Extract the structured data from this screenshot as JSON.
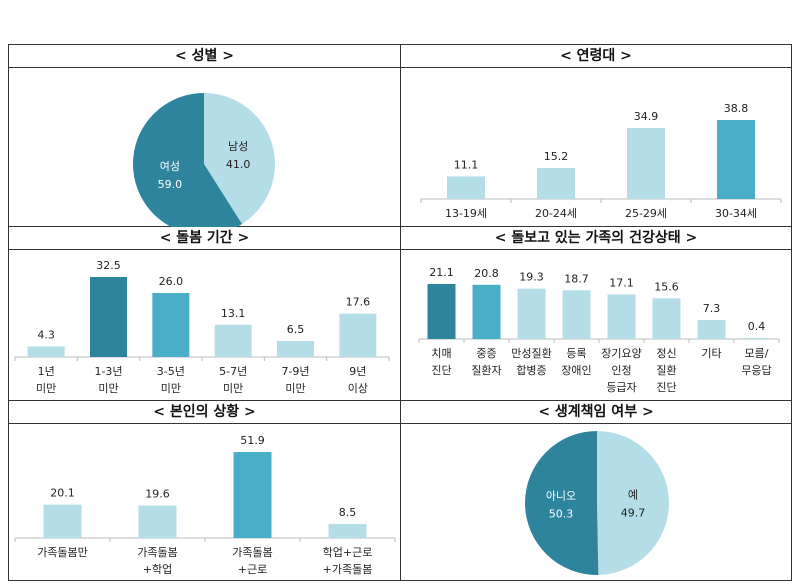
{
  "colors": {
    "dark": "#2e849d",
    "mid": "#4aaec8",
    "light": "#b5dde8"
  },
  "chart_data": [
    {
      "id": "gender",
      "type": "pie",
      "title": "< 성별 >",
      "slices": [
        {
          "label": "남성",
          "value": 41.0,
          "color": "light"
        },
        {
          "label": "여성",
          "value": 59.0,
          "color": "dark"
        }
      ]
    },
    {
      "id": "age",
      "type": "bar",
      "title": "< 연령대 >",
      "categories": [
        [
          "13-19세"
        ],
        [
          "20-24세"
        ],
        [
          "25-29세"
        ],
        [
          "30-34세"
        ]
      ],
      "values": [
        11.1,
        15.2,
        34.9,
        38.8
      ],
      "colors": [
        "light",
        "light",
        "light",
        "mid"
      ]
    },
    {
      "id": "period",
      "type": "bar",
      "title": "< 돌봄 기간 >",
      "categories": [
        [
          "1년",
          "미만"
        ],
        [
          "1-3년",
          "미만"
        ],
        [
          "3-5년",
          "미만"
        ],
        [
          "5-7년",
          "미만"
        ],
        [
          "7-9년",
          "미만"
        ],
        [
          "9년",
          "이상"
        ]
      ],
      "values": [
        4.3,
        32.5,
        26.0,
        13.1,
        6.5,
        17.6
      ],
      "colors": [
        "light",
        "dark",
        "mid",
        "light",
        "light",
        "light"
      ]
    },
    {
      "id": "health",
      "type": "bar",
      "title": "< 돌보고 있는 가족의 건강상태 >",
      "categories": [
        [
          "치매",
          "진단"
        ],
        [
          "중증",
          "질환자"
        ],
        [
          "만성질환",
          "합병증"
        ],
        [
          "등록",
          "장애인"
        ],
        [
          "장기요양",
          "인정",
          "등급자"
        ],
        [
          "정신",
          "질환",
          "진단"
        ],
        [
          "기타"
        ],
        [
          "모름/",
          "무응답"
        ]
      ],
      "values": [
        21.1,
        20.8,
        19.3,
        18.7,
        17.1,
        15.6,
        7.3,
        0.4
      ],
      "colors": [
        "dark",
        "mid",
        "light",
        "light",
        "light",
        "light",
        "light",
        "light"
      ]
    },
    {
      "id": "situation",
      "type": "bar",
      "title": "< 본인의 상황 >",
      "categories": [
        [
          "가족돌봄만"
        ],
        [
          "가족돌봄",
          "+학업"
        ],
        [
          "가족돌봄",
          "+근로"
        ],
        [
          "학업+근로",
          "+가족돌봄"
        ]
      ],
      "values": [
        20.1,
        19.6,
        51.9,
        8.5
      ],
      "colors": [
        "light",
        "light",
        "mid",
        "light"
      ]
    },
    {
      "id": "livelihood",
      "type": "pie",
      "title": "< 생계책임 여부 >",
      "slices": [
        {
          "label": "예",
          "value": 49.7,
          "color": "light"
        },
        {
          "label": "아니오",
          "value": 50.3,
          "color": "dark"
        }
      ]
    }
  ]
}
